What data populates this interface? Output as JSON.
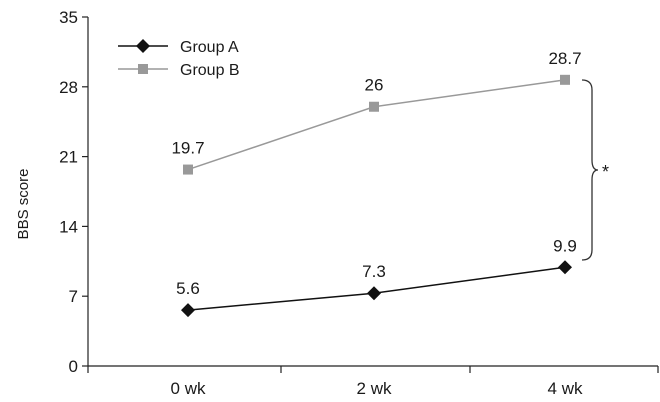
{
  "chart_data": {
    "type": "line",
    "categories": [
      "0 wk",
      "2 wk",
      "4 wk"
    ],
    "series": [
      {
        "name": "Group A",
        "values": [
          5.6,
          7.3,
          9.9
        ],
        "labels": [
          "5.6",
          "7.3",
          "9.9"
        ],
        "color": "#111111",
        "marker": "diamond"
      },
      {
        "name": "Group B",
        "values": [
          19.7,
          26,
          28.7
        ],
        "labels": [
          "19.7",
          "26",
          "28.7"
        ],
        "color": "#999999",
        "marker": "square"
      }
    ],
    "title": "",
    "xlabel": "",
    "ylabel": "BBS score",
    "ylim": [
      0,
      35
    ],
    "yticks": [
      0,
      7,
      14,
      21,
      28,
      35
    ],
    "ytick_labels": [
      "0",
      "7",
      "14",
      "21",
      "28",
      "35"
    ],
    "grid": false,
    "legend_position": "top-left",
    "annotation": "*"
  }
}
